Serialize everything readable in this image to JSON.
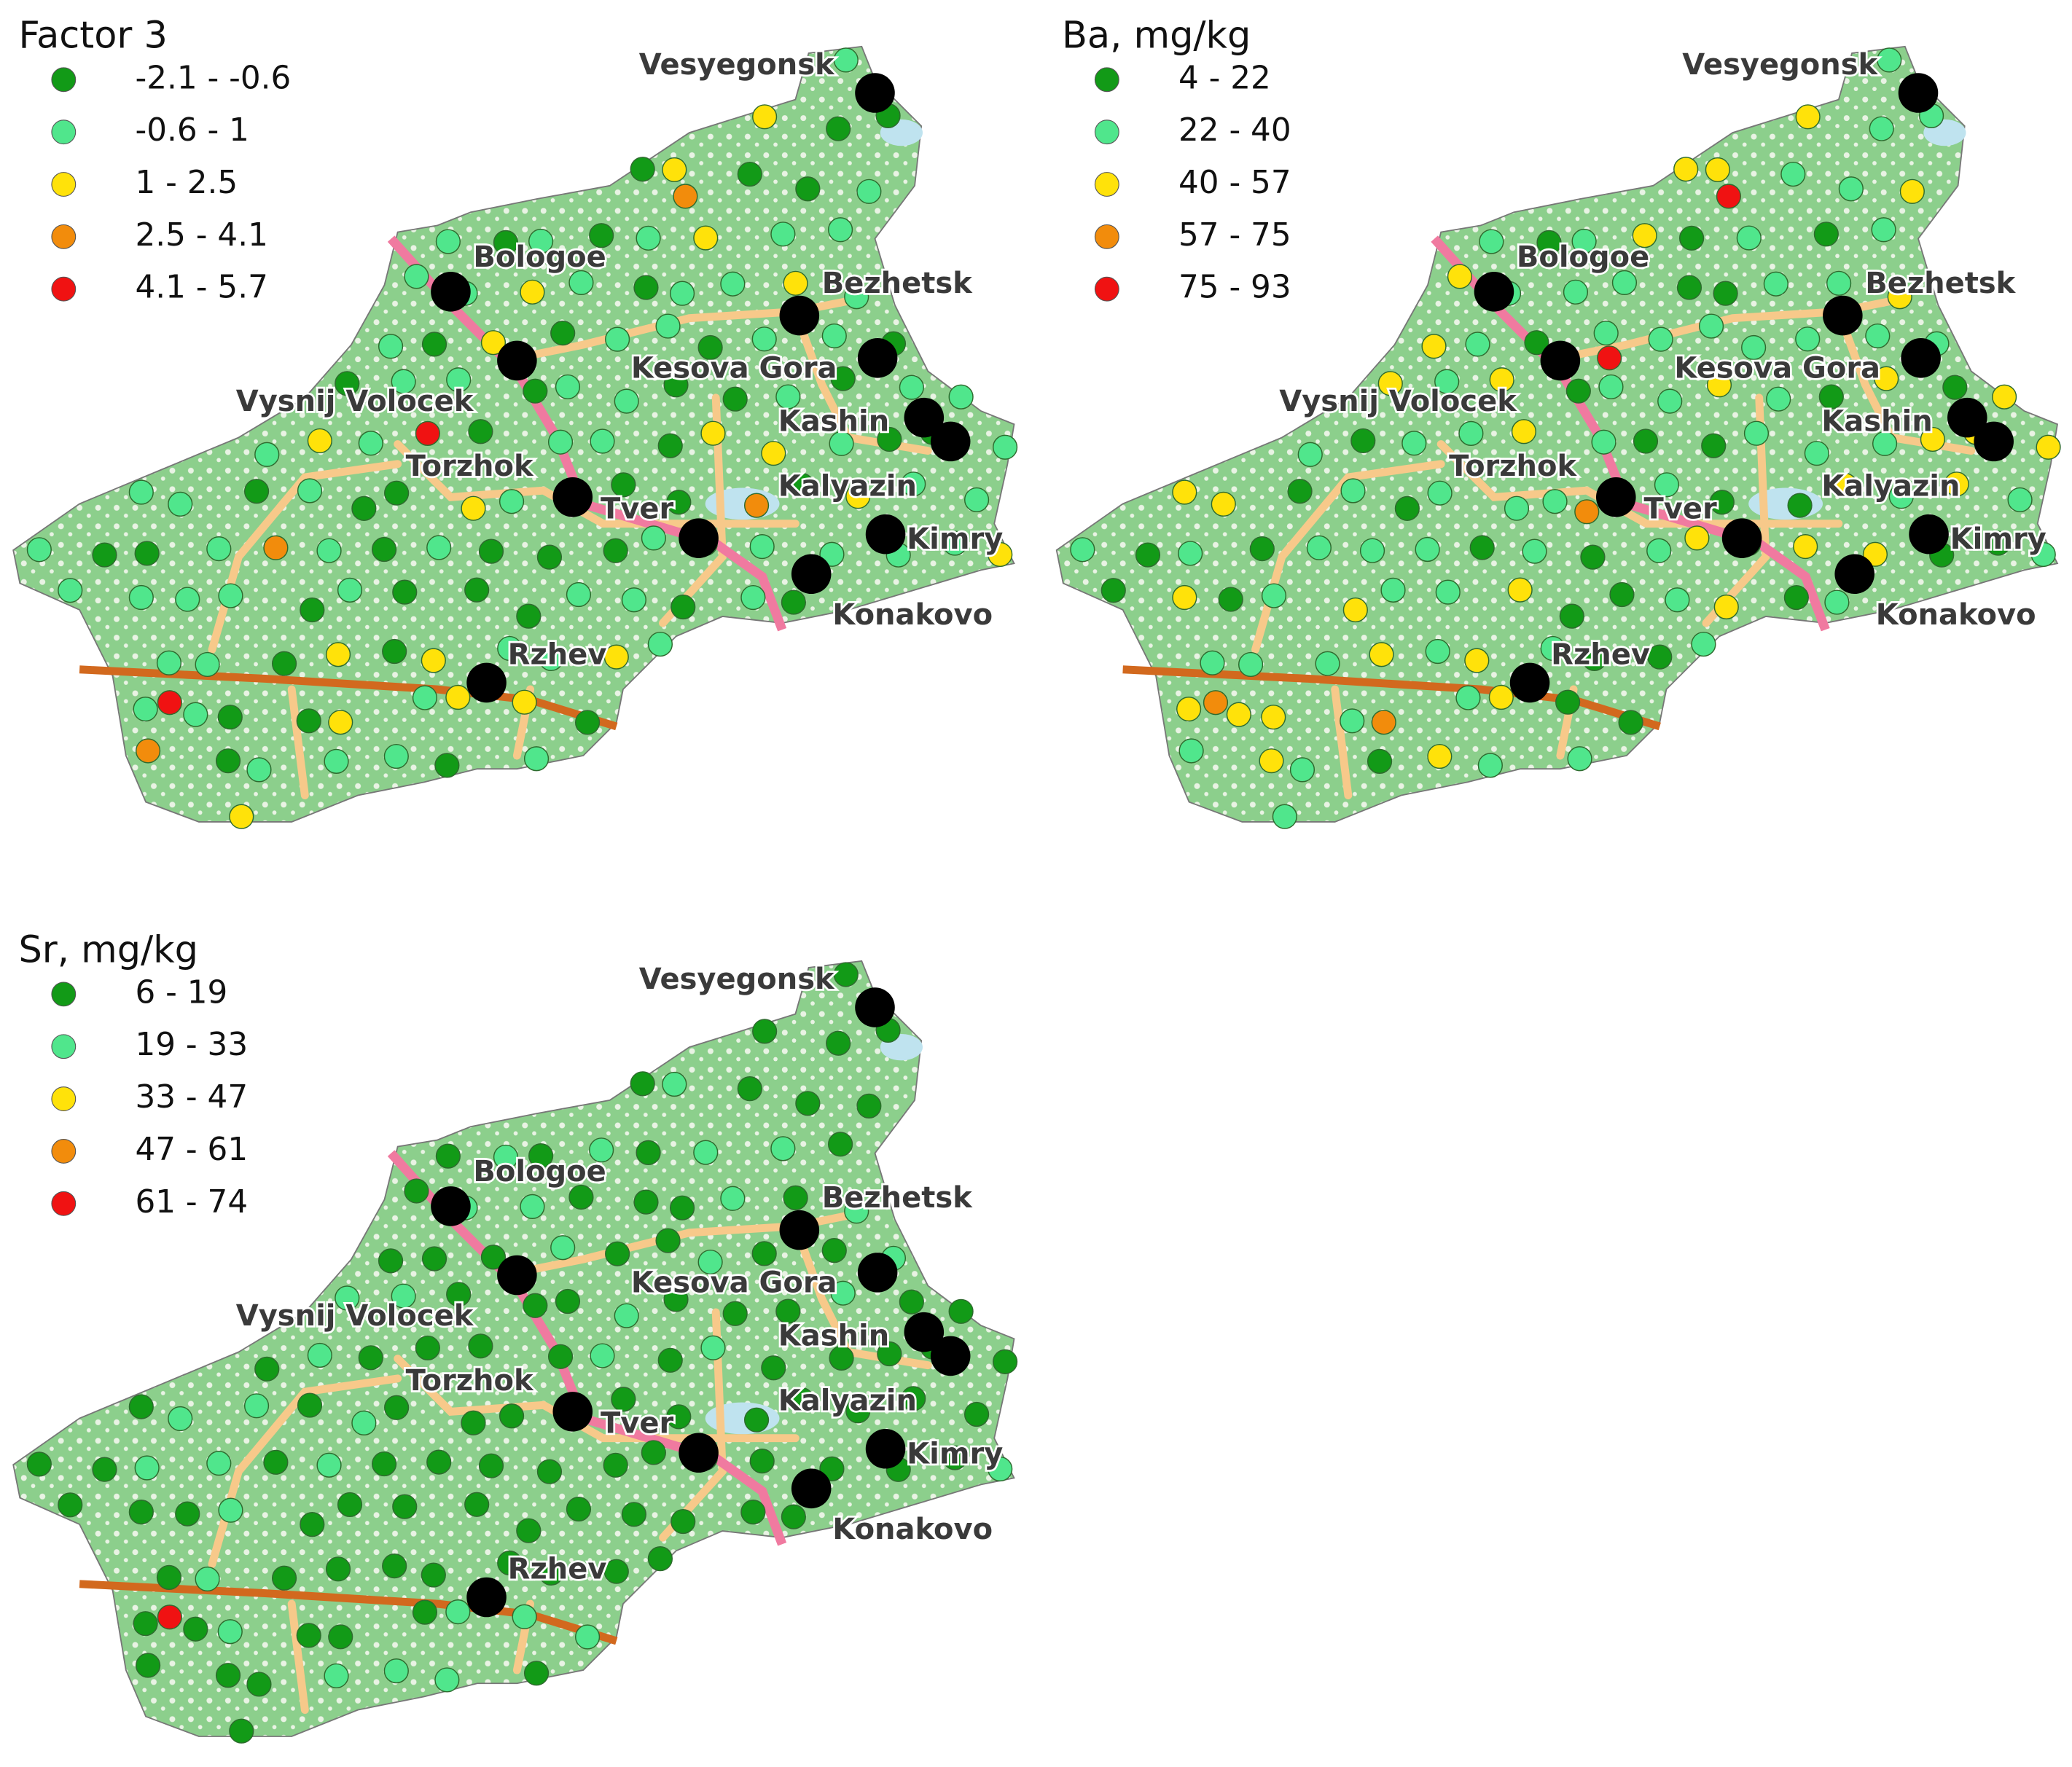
{
  "panels": [
    {
      "title": "Factor 3",
      "legend": [
        {
          "label": "-2.1 - -0.6",
          "color": "#129a17"
        },
        {
          "label": "-0.6 - 1",
          "color": "#50e68c"
        },
        {
          "label": "1 - 2.5",
          "color": "#ffe20a"
        },
        {
          "label": "2.5 - 4.1",
          "color": "#f28c0c"
        },
        {
          "label": "4.1 - 5.7",
          "color": "#f01212"
        }
      ]
    },
    {
      "title": "Ba, mg/kg",
      "legend": [
        {
          "label": "4 - 22",
          "color": "#129a17"
        },
        {
          "label": "22 - 40",
          "color": "#50e68c"
        },
        {
          "label": "40 - 57",
          "color": "#ffe20a"
        },
        {
          "label": "57 - 75",
          "color": "#f28c0c"
        },
        {
          "label": "75 - 93",
          "color": "#f01212"
        }
      ]
    },
    {
      "title": "Sr, mg/kg",
      "legend": [
        {
          "label": "6 - 19",
          "color": "#129a17"
        },
        {
          "label": "19 - 33",
          "color": "#50e68c"
        },
        {
          "label": "33 - 47",
          "color": "#ffe20a"
        },
        {
          "label": "47 - 61",
          "color": "#f28c0c"
        },
        {
          "label": "61 - 74",
          "color": "#f01212"
        }
      ]
    }
  ],
  "cities": [
    "Vesyegonsk",
    "Bologoe",
    "Bezhetsk",
    "Kesova Gora",
    "Vysnij Volocek",
    "Kashin",
    "Torzhok",
    "Tver",
    "Kalyazin",
    "Kimry",
    "Konakovo",
    "Rzhev"
  ]
}
